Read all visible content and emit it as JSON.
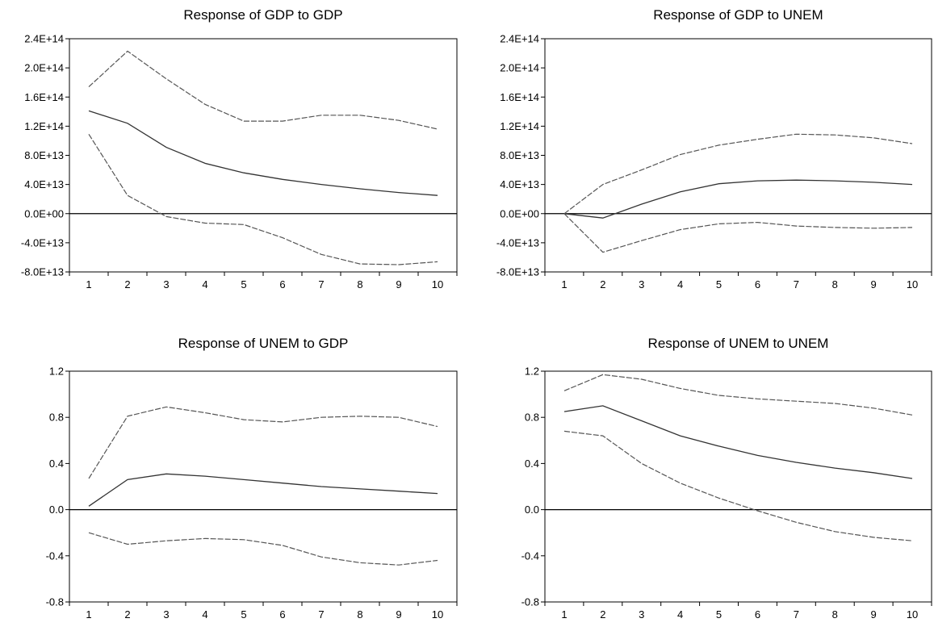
{
  "chart_data": [
    {
      "type": "line",
      "title": "Response of GDP to GDP",
      "x": [
        1,
        2,
        3,
        4,
        5,
        6,
        7,
        8,
        9,
        10
      ],
      "ylim": [
        -80000000000000.0,
        240000000000000.0
      ],
      "yticks": [
        -80000000000000.0,
        -40000000000000.0,
        0,
        40000000000000.0,
        80000000000000.0,
        120000000000000.0,
        160000000000000.0,
        200000000000000.0,
        240000000000000.0
      ],
      "ytick_labels": [
        "-8.0E+13",
        "-4.0E+13",
        "0.0E+00",
        "4.0E+13",
        "8.0E+13",
        "1.2E+14",
        "1.6E+14",
        "2.0E+14",
        "2.4E+14"
      ],
      "xtick_labels": [
        "1",
        "2",
        "3",
        "4",
        "5",
        "6",
        "7",
        "8",
        "9",
        "10"
      ],
      "series": [
        {
          "role": "response",
          "values": [
            141000000000000.0,
            124000000000000.0,
            91000000000000.0,
            69000000000000.0,
            56000000000000.0,
            47000000000000.0,
            40000000000000.0,
            34000000000000.0,
            29000000000000.0,
            25000000000000.0
          ]
        },
        {
          "role": "upper",
          "values": [
            174000000000000.0,
            223000000000000.0,
            185000000000000.0,
            150000000000000.0,
            127000000000000.0,
            127000000000000.0,
            135000000000000.0,
            135000000000000.0,
            128000000000000.0,
            116000000000000.0
          ]
        },
        {
          "role": "lower",
          "values": [
            109000000000000.0,
            25000000000000.0,
            -4000000000000.0,
            -13000000000000.0,
            -15000000000000.0,
            -33000000000000.0,
            -56000000000000.0,
            -69000000000000.0,
            -70000000000000.0,
            -66000000000000.0
          ]
        }
      ]
    },
    {
      "type": "line",
      "title": "Response of GDP to UNEM",
      "x": [
        1,
        2,
        3,
        4,
        5,
        6,
        7,
        8,
        9,
        10
      ],
      "ylim": [
        -80000000000000.0,
        240000000000000.0
      ],
      "yticks": [
        -80000000000000.0,
        -40000000000000.0,
        0,
        40000000000000.0,
        80000000000000.0,
        120000000000000.0,
        160000000000000.0,
        200000000000000.0,
        240000000000000.0
      ],
      "ytick_labels": [
        "-8.0E+13",
        "-4.0E+13",
        "0.0E+00",
        "4.0E+13",
        "8.0E+13",
        "1.2E+14",
        "1.6E+14",
        "2.0E+14",
        "2.4E+14"
      ],
      "xtick_labels": [
        "1",
        "2",
        "3",
        "4",
        "5",
        "6",
        "7",
        "8",
        "9",
        "10"
      ],
      "series": [
        {
          "role": "response",
          "values": [
            0,
            -6000000000000.0,
            13000000000000.0,
            30000000000000.0,
            41000000000000.0,
            45000000000000.0,
            46000000000000.0,
            45000000000000.0,
            43000000000000.0,
            40000000000000.0
          ]
        },
        {
          "role": "upper",
          "values": [
            0,
            40000000000000.0,
            60000000000000.0,
            81000000000000.0,
            94000000000000.0,
            102000000000000.0,
            109000000000000.0,
            108000000000000.0,
            104000000000000.0,
            96000000000000.0
          ]
        },
        {
          "role": "lower",
          "values": [
            0,
            -53000000000000.0,
            -37000000000000.0,
            -22000000000000.0,
            -14000000000000.0,
            -12000000000000.0,
            -17000000000000.0,
            -19000000000000.0,
            -20000000000000.0,
            -19000000000000.0
          ]
        }
      ]
    },
    {
      "type": "line",
      "title": "Response of UNEM to GDP",
      "x": [
        1,
        2,
        3,
        4,
        5,
        6,
        7,
        8,
        9,
        10
      ],
      "ylim": [
        -0.8,
        1.2
      ],
      "yticks": [
        -0.8,
        -0.4,
        0.0,
        0.4,
        0.8,
        1.2
      ],
      "ytick_labels": [
        "-0.8",
        "-0.4",
        "0.0",
        "0.4",
        "0.8",
        "1.2"
      ],
      "xtick_labels": [
        "1",
        "2",
        "3",
        "4",
        "5",
        "6",
        "7",
        "8",
        "9",
        "10"
      ],
      "series": [
        {
          "role": "response",
          "values": [
            0.03,
            0.26,
            0.31,
            0.29,
            0.26,
            0.23,
            0.2,
            0.18,
            0.16,
            0.14
          ]
        },
        {
          "role": "upper",
          "values": [
            0.27,
            0.81,
            0.89,
            0.84,
            0.78,
            0.76,
            0.8,
            0.81,
            0.8,
            0.72
          ]
        },
        {
          "role": "lower",
          "values": [
            -0.2,
            -0.3,
            -0.27,
            -0.25,
            -0.26,
            -0.31,
            -0.41,
            -0.46,
            -0.48,
            -0.44
          ]
        }
      ]
    },
    {
      "type": "line",
      "title": "Response of UNEM to UNEM",
      "x": [
        1,
        2,
        3,
        4,
        5,
        6,
        7,
        8,
        9,
        10
      ],
      "ylim": [
        -0.8,
        1.2
      ],
      "yticks": [
        -0.8,
        -0.4,
        0.0,
        0.4,
        0.8,
        1.2
      ],
      "ytick_labels": [
        "-0.8",
        "-0.4",
        "0.0",
        "0.4",
        "0.8",
        "1.2"
      ],
      "xtick_labels": [
        "1",
        "2",
        "3",
        "4",
        "5",
        "6",
        "7",
        "8",
        "9",
        "10"
      ],
      "series": [
        {
          "role": "response",
          "values": [
            0.85,
            0.9,
            0.77,
            0.64,
            0.55,
            0.47,
            0.41,
            0.36,
            0.32,
            0.27
          ]
        },
        {
          "role": "upper",
          "values": [
            1.03,
            1.17,
            1.13,
            1.05,
            0.99,
            0.96,
            0.94,
            0.92,
            0.88,
            0.82
          ]
        },
        {
          "role": "lower",
          "values": [
            0.68,
            0.64,
            0.4,
            0.23,
            0.1,
            -0.01,
            -0.11,
            -0.19,
            -0.24,
            -0.27
          ]
        }
      ]
    }
  ]
}
